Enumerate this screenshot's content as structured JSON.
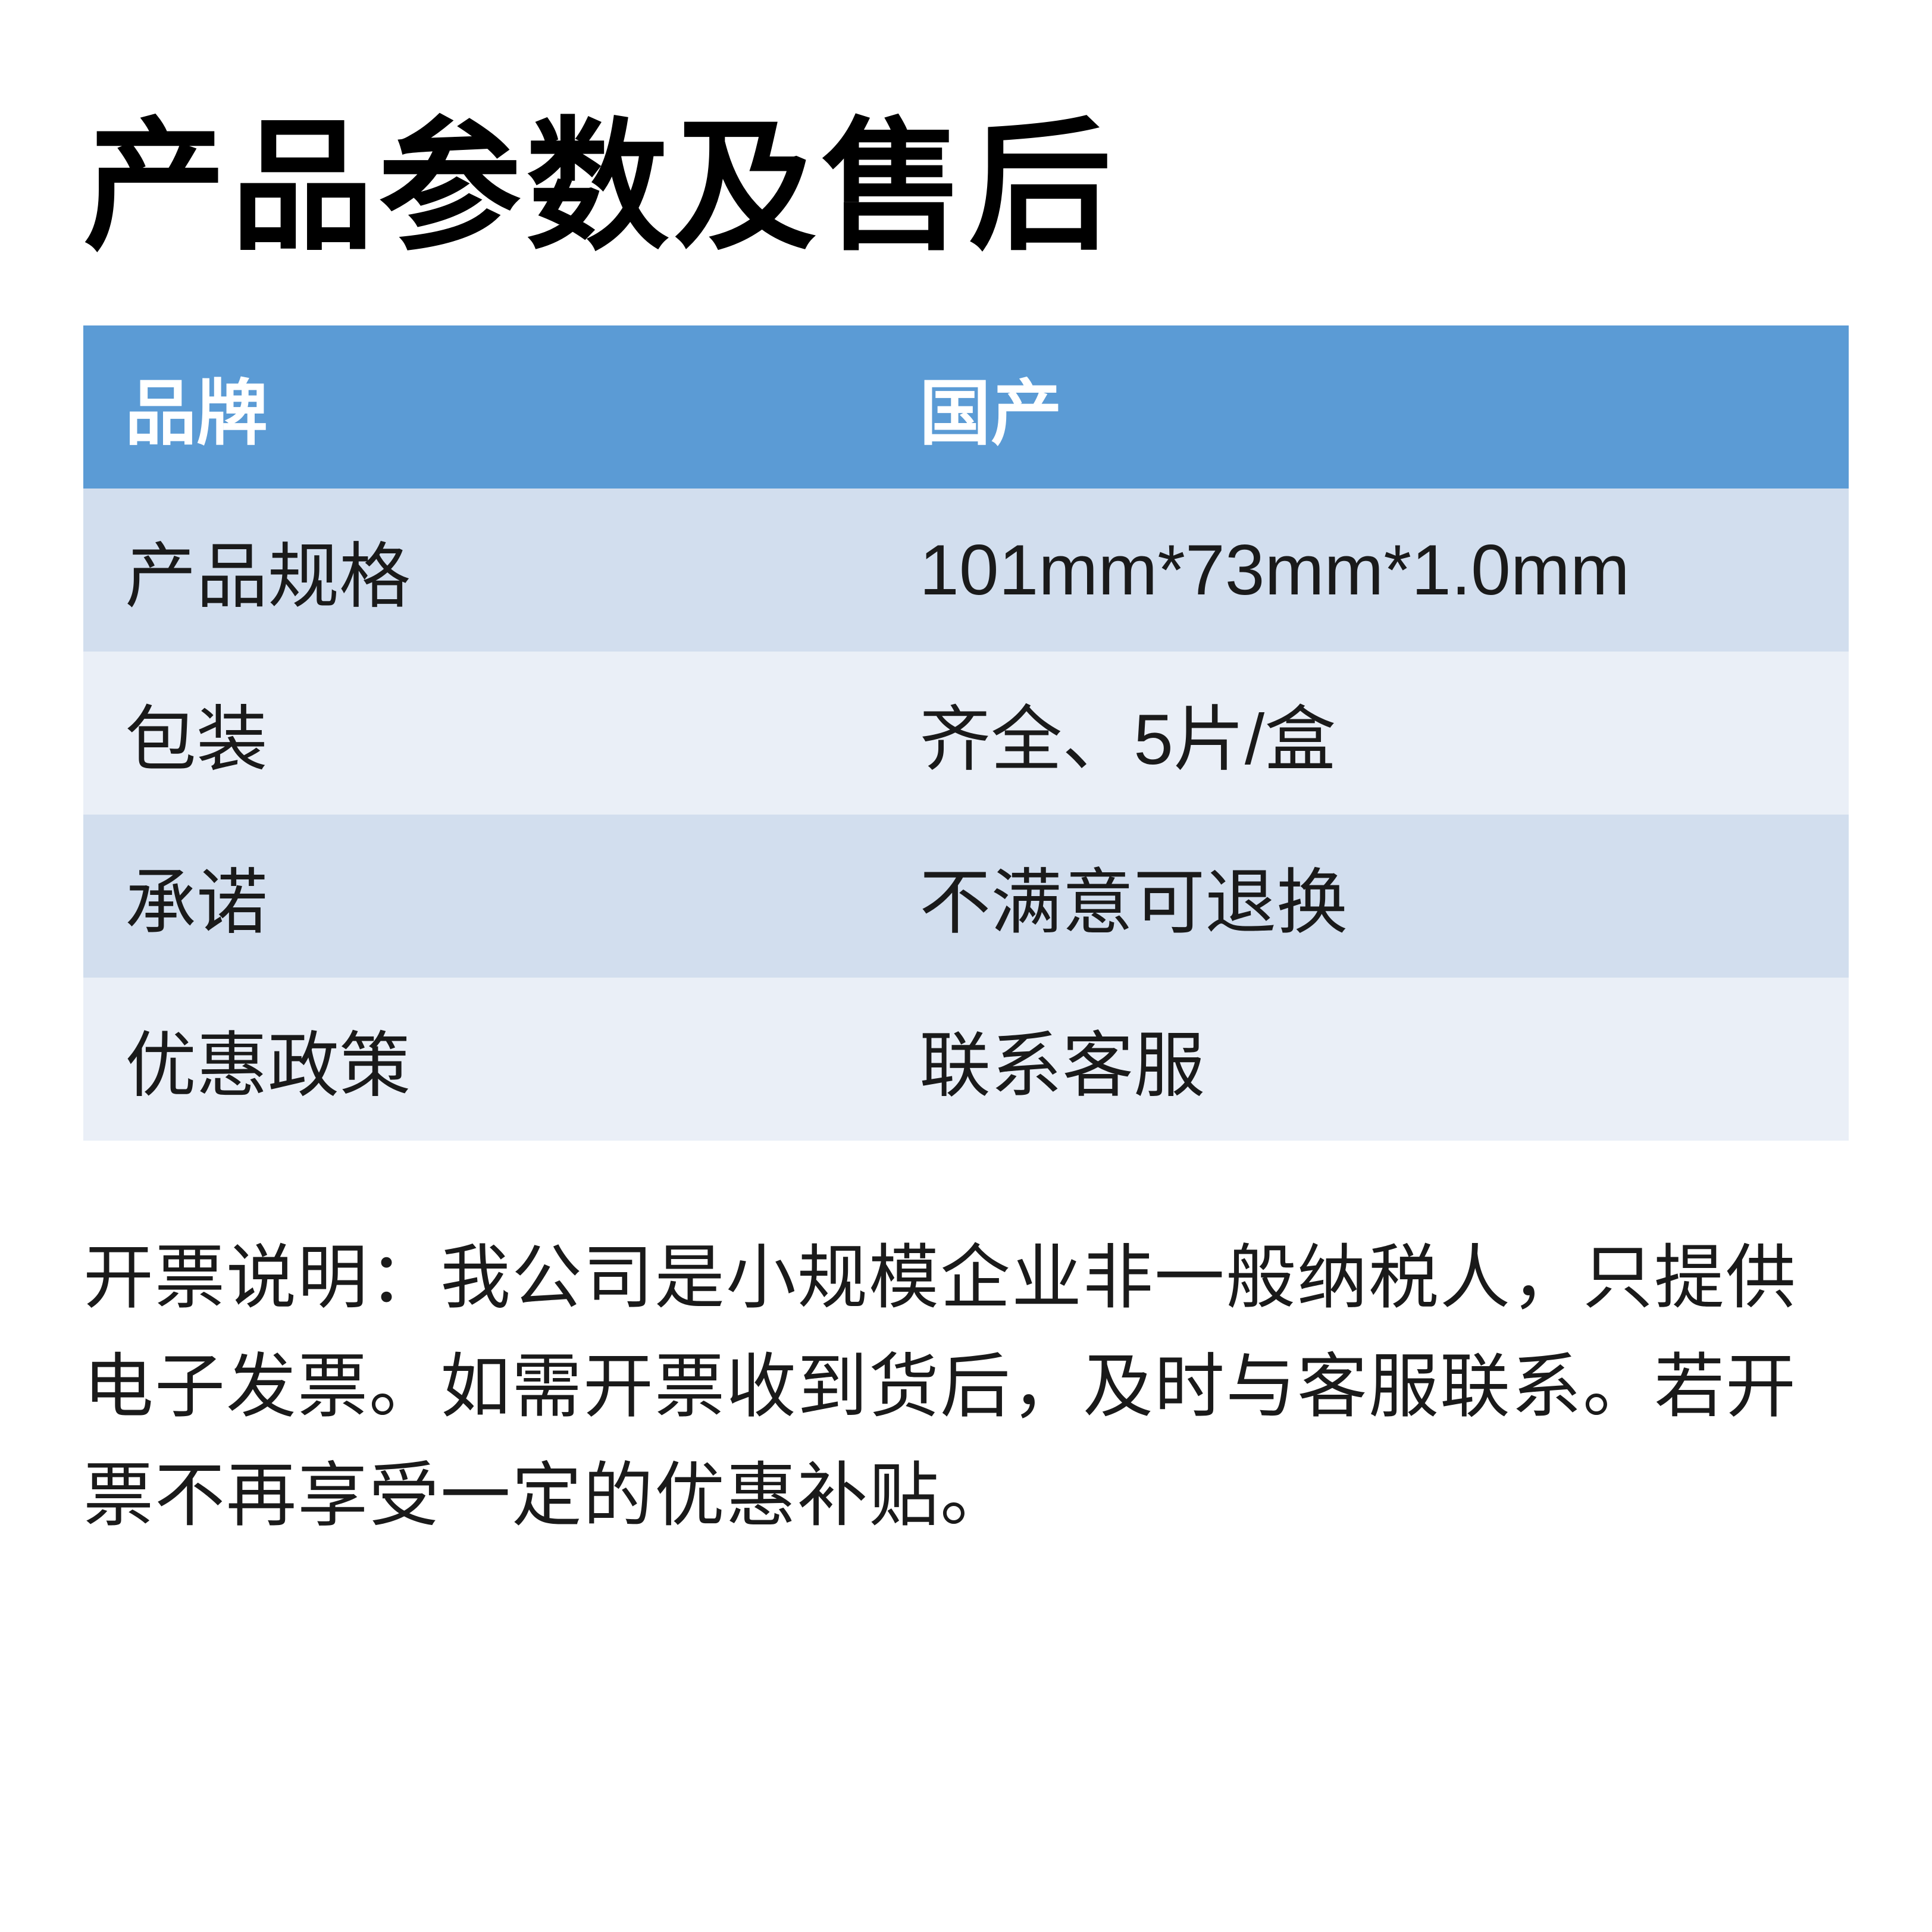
{
  "title": "产品参数及售后",
  "table": {
    "header": {
      "label": "品牌",
      "value": "国产"
    },
    "rows": [
      {
        "label": "产品规格",
        "value": "101mm*73mm*1.0mm"
      },
      {
        "label": "包装",
        "value": "齐全、5片/盒"
      },
      {
        "label": "承诺",
        "value": "不满意可退换"
      },
      {
        "label": "优惠政策",
        "value": "联系客服"
      }
    ],
    "colors": {
      "header_bg": "#5b9bd5",
      "header_text": "#ffffff",
      "odd_row_bg": "#d2deee",
      "even_row_bg": "#eaeff7",
      "body_text": "#1a1a1a"
    },
    "font_sizes": {
      "title": 240,
      "cell": 120,
      "footer": 118
    }
  },
  "footer_note": "开票说明：我公司是小规模企业非一般纳税人，只提供电子发票。如需开票收到货后，及时与客服联系。若开票不再享受一定的优惠补贴。"
}
